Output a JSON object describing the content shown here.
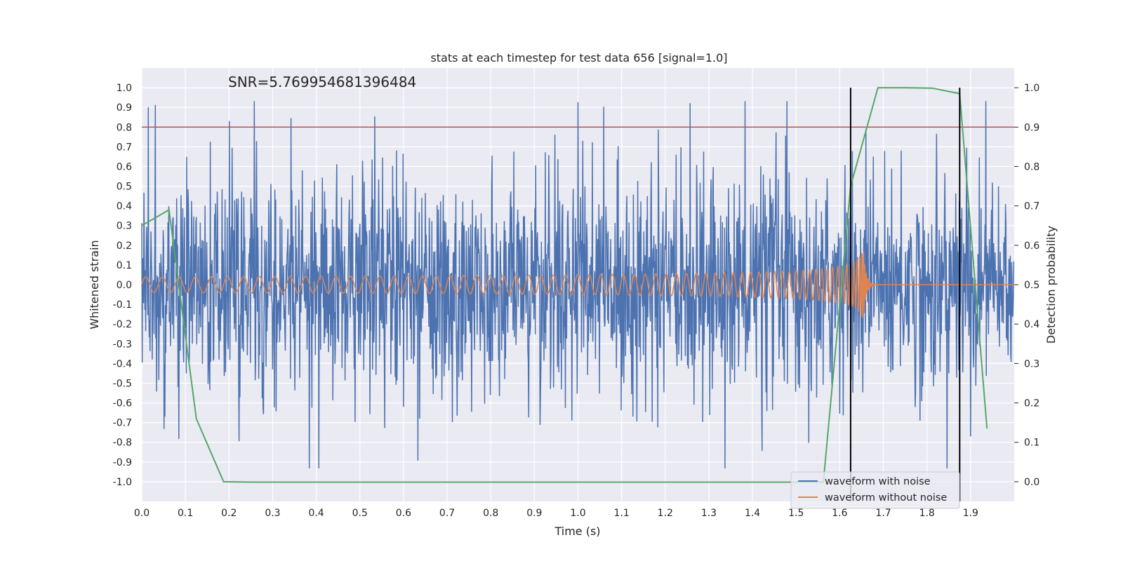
{
  "chart_data": {
    "type": "line",
    "title": "stats at each timestep for test data 656 [signal=1.0]",
    "xlabel": "Time (s)",
    "ylabel": "Whitened strain",
    "y2label": "Detection probability",
    "annotation": "SNR=5.769954681396484",
    "xlim": [
      0.0,
      2.0
    ],
    "ylim": [
      -1.1,
      1.1
    ],
    "y2lim": [
      -0.05,
      1.05
    ],
    "xticks": [
      "0.0",
      "0.1",
      "0.2",
      "0.3",
      "0.4",
      "0.5",
      "0.6",
      "0.7",
      "0.8",
      "0.9",
      "1.0",
      "1.1",
      "1.2",
      "1.3",
      "1.4",
      "1.5",
      "1.6",
      "1.7",
      "1.8",
      "1.9"
    ],
    "yticks": [
      "1.0",
      "0.9",
      "0.8",
      "0.7",
      "0.6",
      "0.5",
      "0.4",
      "0.3",
      "0.2",
      "0.1",
      "0.0",
      "-0.1",
      "-0.2",
      "-0.3",
      "-0.4",
      "-0.5",
      "-0.6",
      "-0.7",
      "-0.8",
      "-0.9",
      "-1.0"
    ],
    "y2ticks": [
      "1.0",
      "0.9",
      "0.8",
      "0.7",
      "0.6",
      "0.5",
      "0.4",
      "0.3",
      "0.2",
      "0.1",
      "0.0"
    ],
    "grid": true,
    "legend_position": "lower-right",
    "legend": [
      "waveform with noise",
      "waveform without noise"
    ],
    "colors": {
      "noise": "#4c72b0",
      "clean": "#dd8452",
      "prob": "#55a868",
      "threshold": "#c44e52",
      "markers": "#000000",
      "background": "#eaeaf2",
      "grid": "#ffffff"
    },
    "threshold_y": 0.8,
    "vlines_x": [
      1.625,
      1.875
    ],
    "vlines_range": [
      -0.05,
      1.0
    ],
    "series": [
      {
        "name": "waveform with noise",
        "description": "noisy whitened strain, amplitude ~0.3 rms with spikes to about ±0.93"
      },
      {
        "name": "waveform without noise",
        "description": "chirp signal, amplitude ~0.04 growing to ~0.17 near merger at ~1.65 s, then ringdown"
      },
      {
        "name": "detection probability",
        "axis": "right",
        "x": [
          0.0,
          0.0625,
          0.125,
          0.1875,
          0.25,
          0.5,
          1.0,
          1.5,
          1.5625,
          1.625,
          1.6875,
          1.75,
          1.8125,
          1.875,
          1.9375
        ],
        "values": [
          0.65,
          0.69,
          0.16,
          0.0,
          -0.001,
          -0.001,
          -0.001,
          -0.001,
          -0.001,
          0.75,
          1.0,
          1.0,
          0.999,
          0.985,
          0.135
        ]
      }
    ]
  }
}
